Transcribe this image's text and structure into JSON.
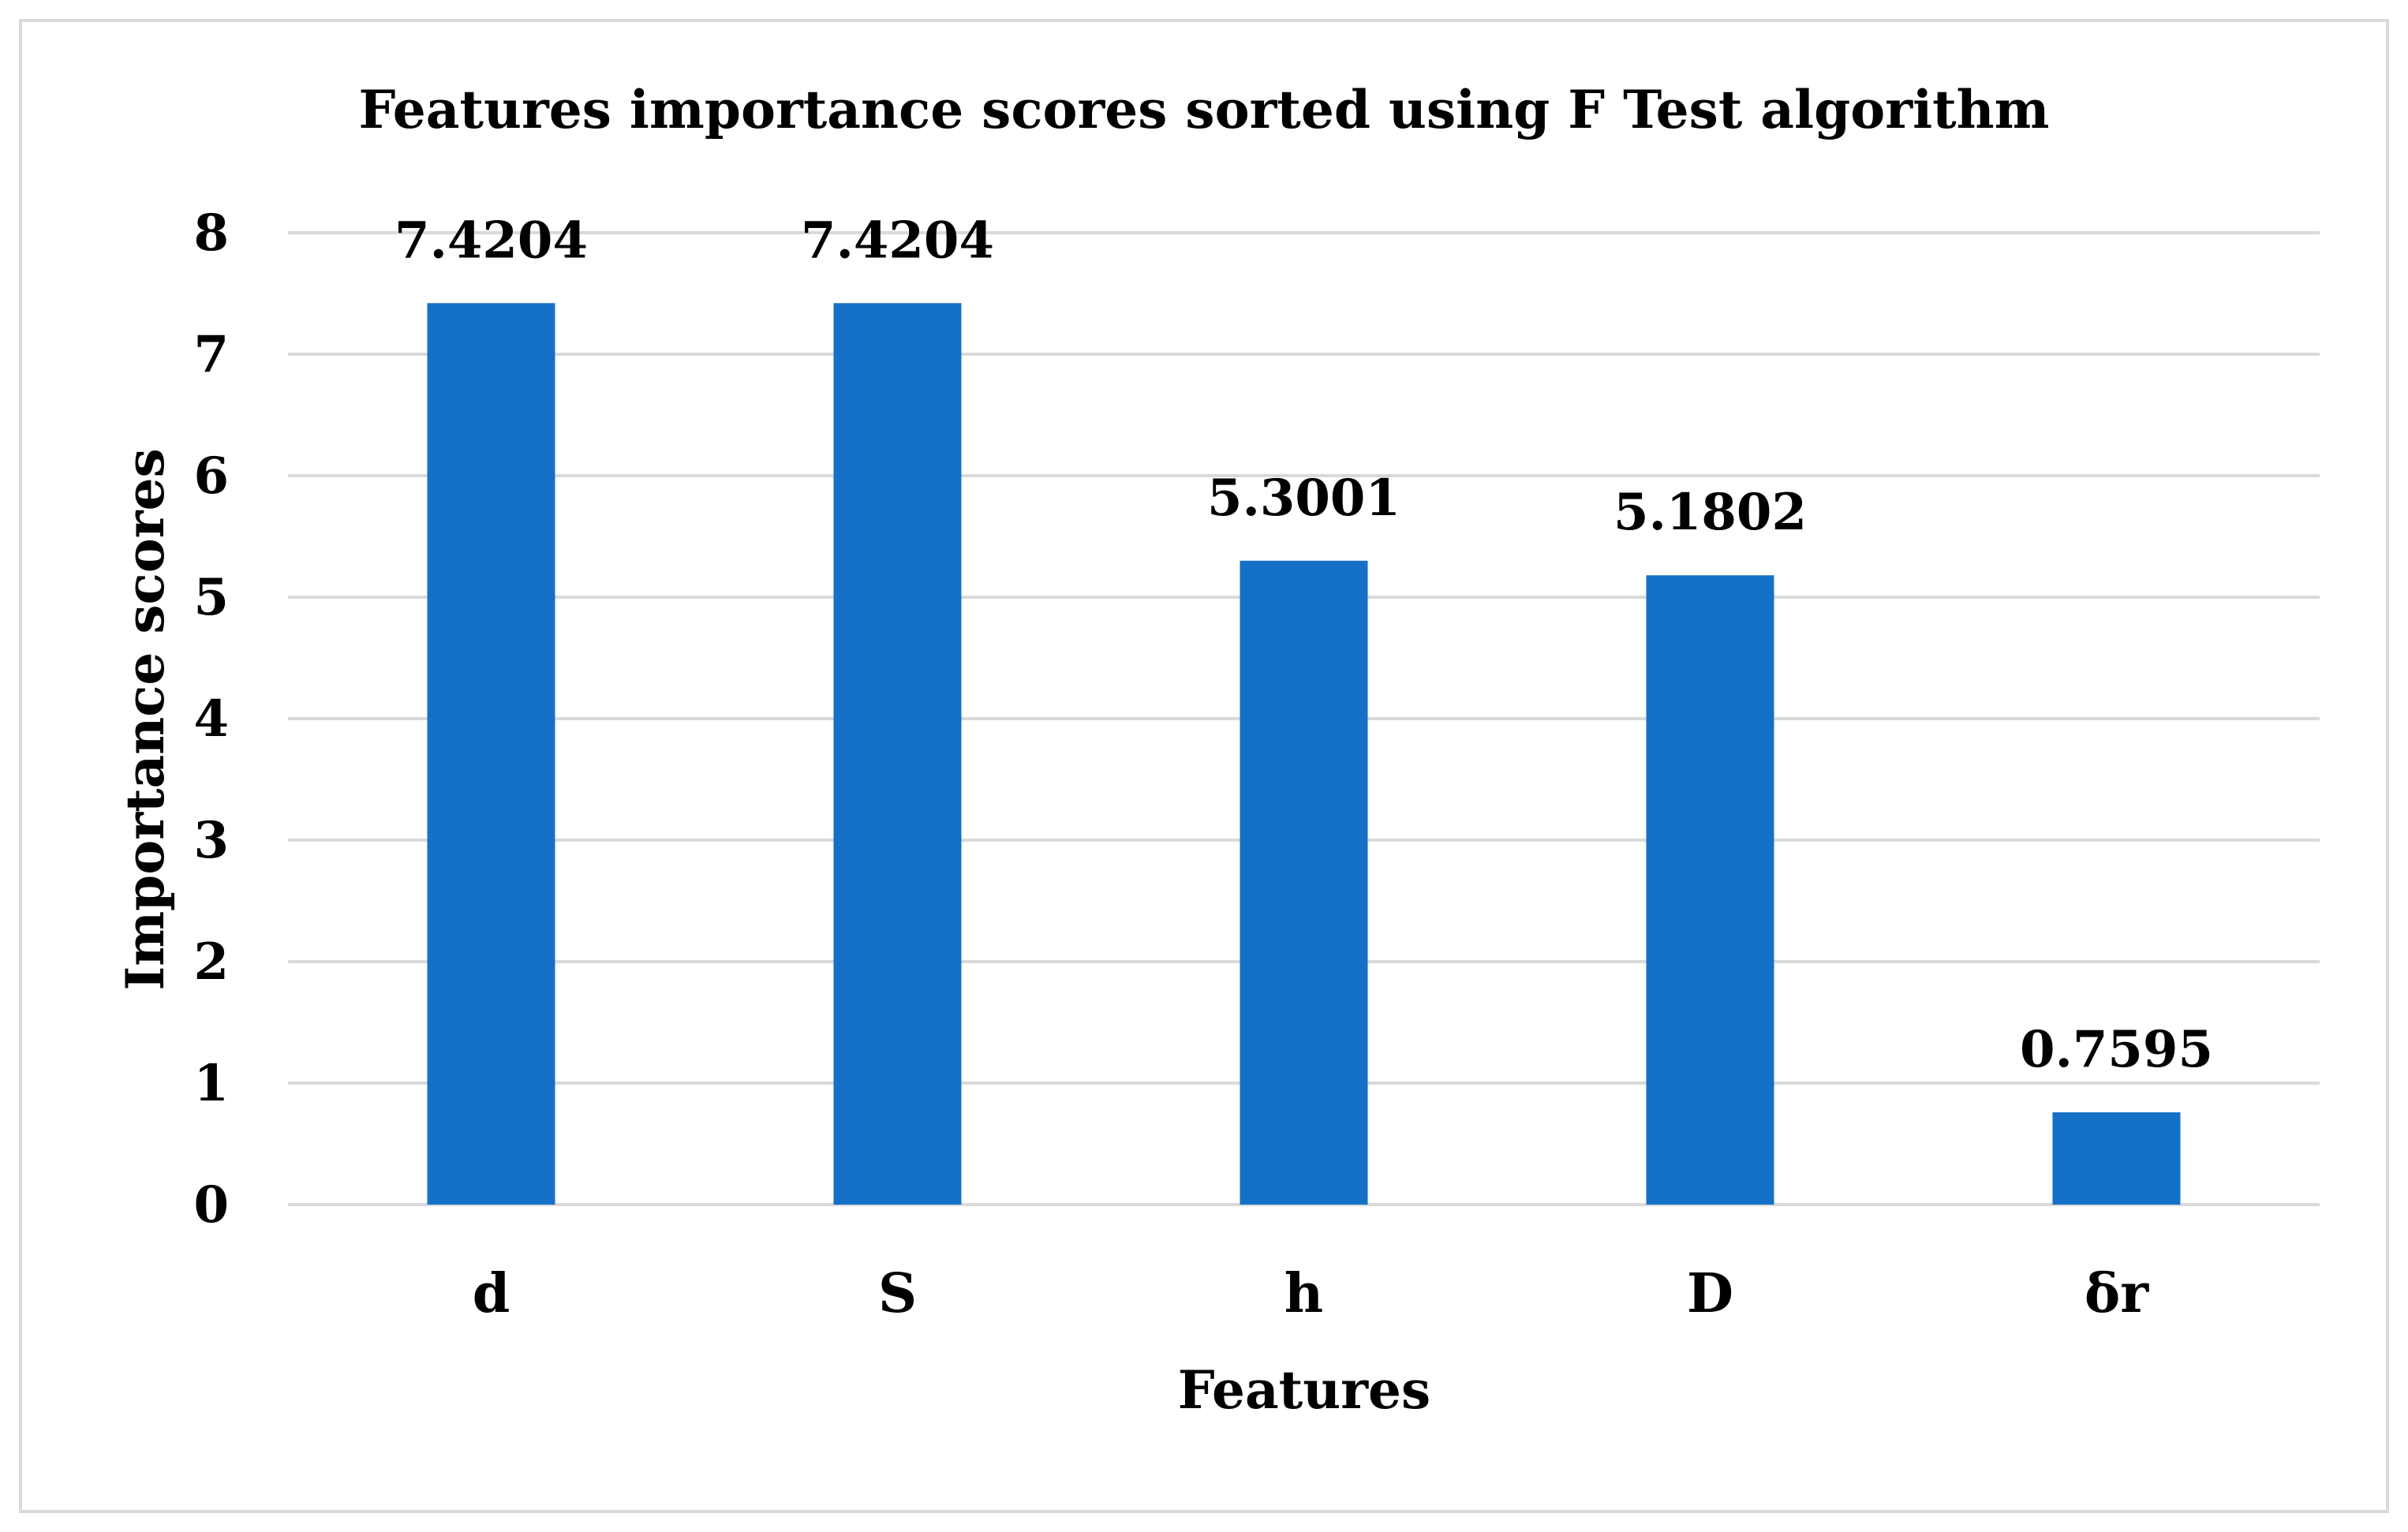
{
  "chart_data": {
    "type": "bar",
    "title": "Features importance scores sorted using F Test algorithm",
    "xlabel": "Features",
    "ylabel": "Importance scores",
    "categories": [
      "d",
      "S",
      "h",
      "D",
      "δr"
    ],
    "values": [
      7.4204,
      7.4204,
      5.3001,
      5.1802,
      0.7595
    ],
    "data_labels": [
      "7.4204",
      "7.4204",
      "5.3001",
      "5.1802",
      "0.7595"
    ],
    "yticks": [
      "0",
      "1",
      "2",
      "3",
      "4",
      "5",
      "6",
      "7",
      "8"
    ],
    "ylim": [
      0,
      8
    ],
    "grid": true,
    "legend": "none",
    "colors": {
      "bar": "#1570C8",
      "grid": "#d9d9d9",
      "frame": "#d9d9d9"
    }
  }
}
